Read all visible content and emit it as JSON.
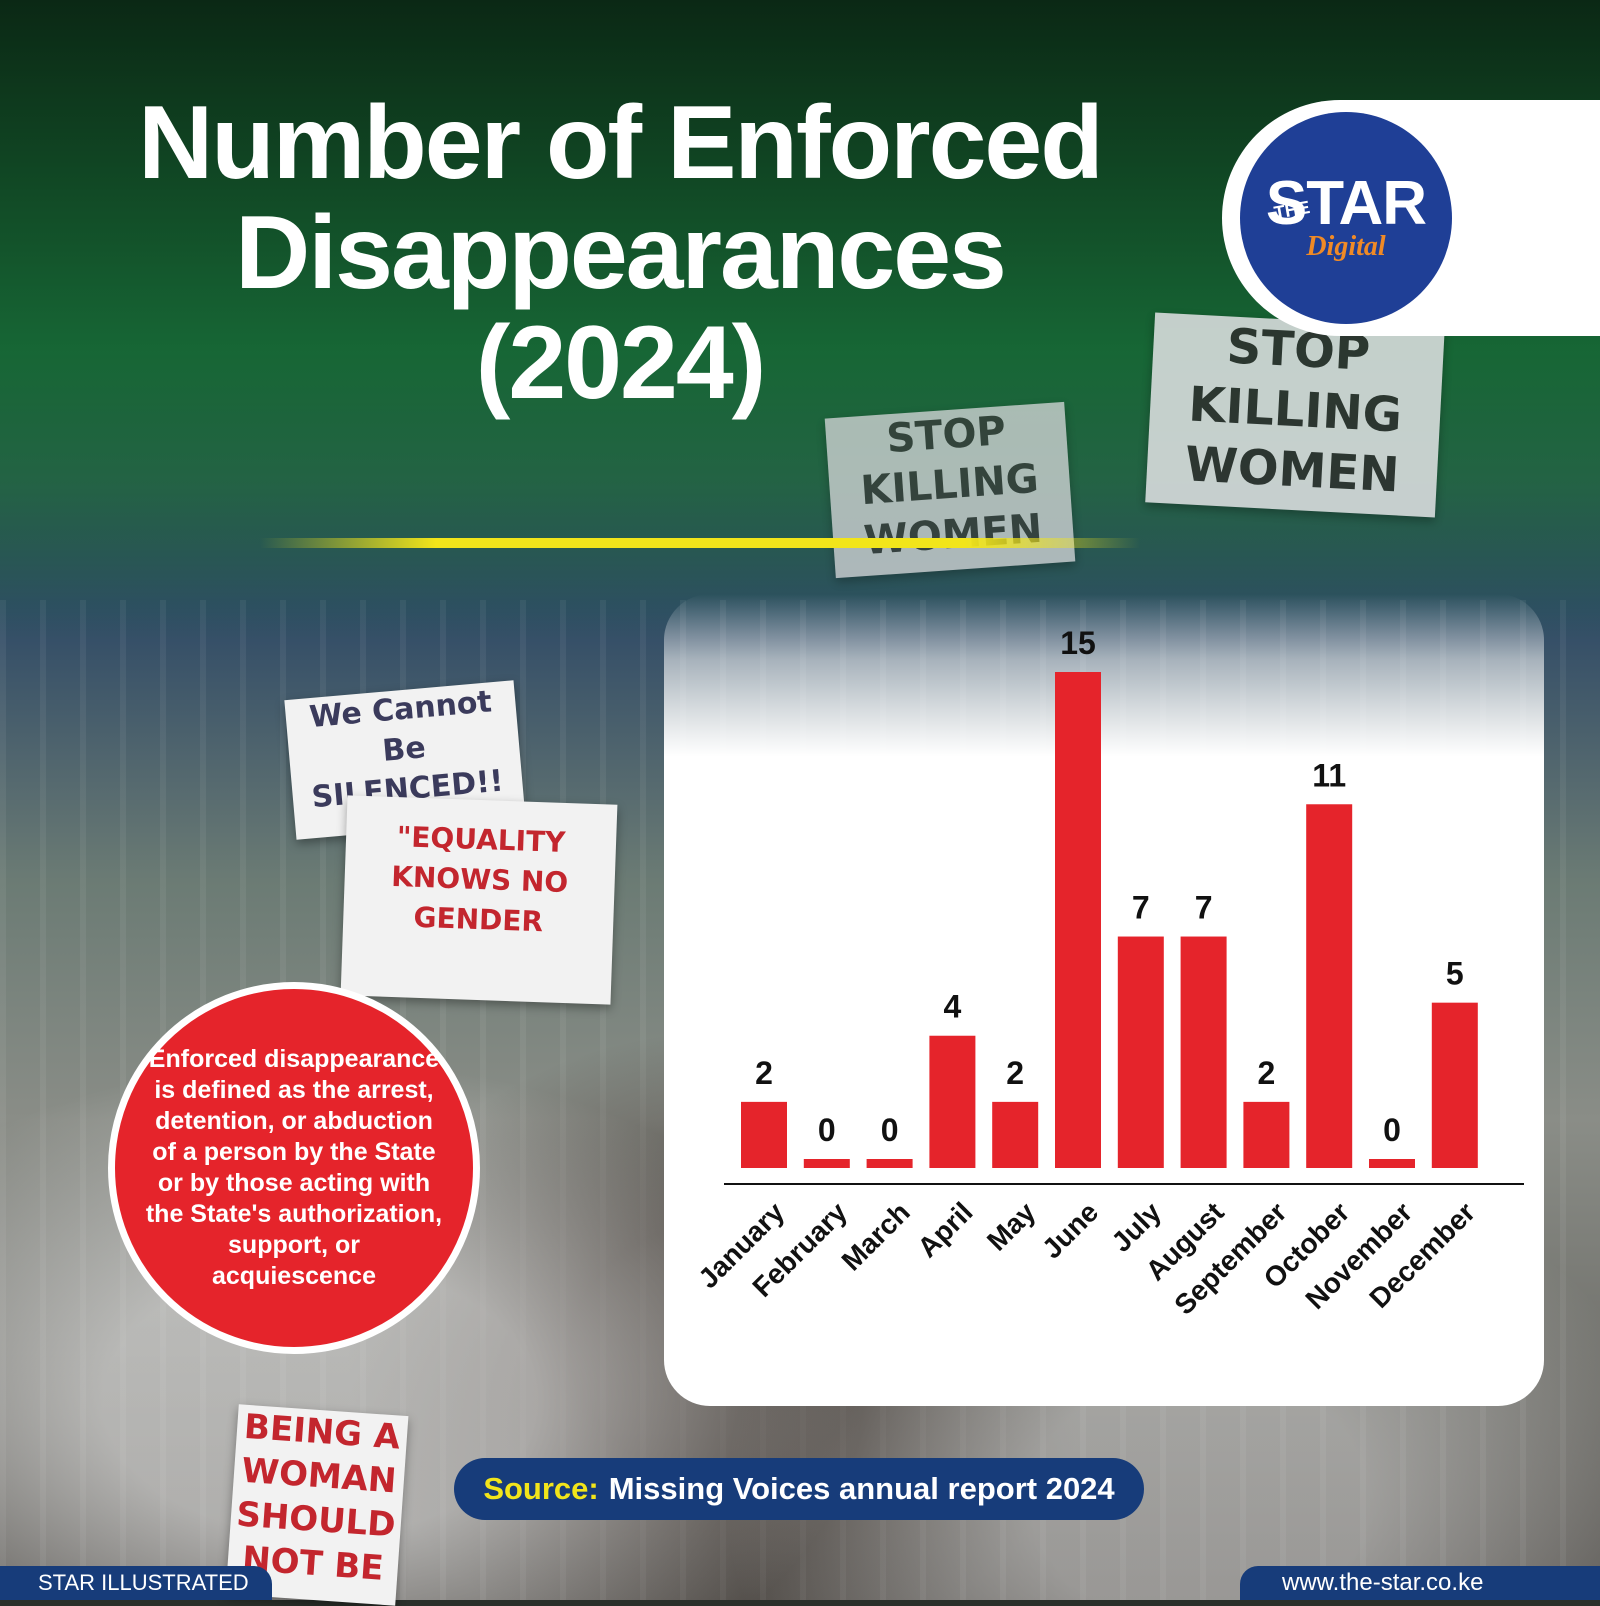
{
  "title": {
    "line1": "Number of Enforced",
    "line2": "Disappearances",
    "line3": "(2024)"
  },
  "logo": {
    "the": "THE",
    "star": "STAR",
    "digital": "Digital"
  },
  "background_signs": [
    {
      "id": "sign1",
      "text": "STOP KILLING WOMEN"
    },
    {
      "id": "sign2",
      "text": "STOP KILLING WOMEN"
    },
    {
      "id": "sign3",
      "text": "We Cannot Be SILENCED!!"
    },
    {
      "id": "sign4",
      "text": "\"EQUALITY KNOWS NO GENDER"
    },
    {
      "id": "sign5",
      "text": "BEING A WOMAN SHOULD NOT BE"
    }
  ],
  "definition": "Enforced disappearance is defined as the arrest, detention, or abduction of a person by the State or by those acting with the State's authorization, support, or acquiescence",
  "source": {
    "label": "Source:",
    "text": "Missing Voices annual report 2024"
  },
  "footer": {
    "left": "STAR ILLUSTRATED",
    "right": "www.the-star.co.ke"
  },
  "colors": {
    "bar": "#e5242b",
    "navy": "#173c7a",
    "yellow": "#f2e51a",
    "brand_blue": "#1f3f96",
    "brand_orange": "#f08a26"
  },
  "chart_data": {
    "type": "bar",
    "title": "Number of Enforced Disappearances (2024)",
    "categories": [
      "January",
      "February",
      "March",
      "April",
      "May",
      "June",
      "July",
      "August",
      "September",
      "October",
      "November",
      "December"
    ],
    "values": [
      2,
      0,
      0,
      4,
      2,
      15,
      7,
      7,
      2,
      11,
      0,
      5
    ],
    "ylim": [
      0,
      15
    ],
    "grid": false,
    "data_labels": true
  }
}
